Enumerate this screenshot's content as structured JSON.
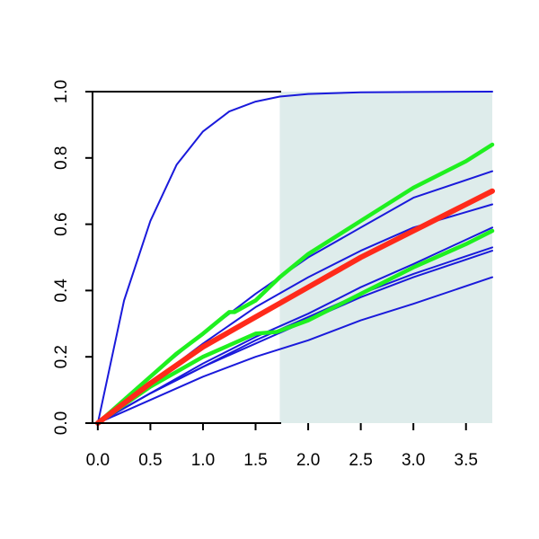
{
  "chart_data": {
    "type": "line",
    "title": "",
    "xlabel": "",
    "ylabel": "",
    "xlim": [
      -0.05,
      3.75
    ],
    "ylim": [
      0,
      1.0
    ],
    "x_ticks": [
      0.0,
      0.5,
      1.0,
      1.5,
      2.0,
      2.5,
      3.0,
      3.5
    ],
    "x_tick_labels": [
      "0.0",
      "0.5",
      "1.0",
      "1.5",
      "2.0",
      "2.5",
      "3.0",
      "3.5"
    ],
    "y_ticks": [
      0.0,
      0.2,
      0.4,
      0.6,
      0.8,
      1.0
    ],
    "y_tick_labels": [
      "0.0",
      "0.2",
      "0.4",
      "0.6",
      "0.8",
      "1.0"
    ],
    "grid": false,
    "legend": "none",
    "shaded_region": {
      "x_from": 1.73,
      "x_to": 3.75,
      "color": "#deeceb"
    },
    "colors": {
      "blue": "#1a1adb",
      "red": "#ff2a1a",
      "green": "#1ff01f"
    },
    "series": [
      {
        "color": "blue",
        "width": 2,
        "points": [
          [
            0,
            0
          ],
          [
            0.25,
            0.37
          ],
          [
            0.5,
            0.61
          ],
          [
            0.75,
            0.78
          ],
          [
            1.0,
            0.88
          ],
          [
            1.25,
            0.94
          ],
          [
            1.5,
            0.97
          ],
          [
            1.73,
            0.985
          ],
          [
            2.0,
            0.993
          ],
          [
            2.5,
            0.998
          ],
          [
            3.0,
            0.999
          ],
          [
            3.75,
            1.0
          ]
        ]
      },
      {
        "color": "blue",
        "width": 2,
        "points": [
          [
            0,
            0
          ],
          [
            0.5,
            0.14
          ],
          [
            1.0,
            0.27
          ],
          [
            1.5,
            0.39
          ],
          [
            2.0,
            0.5
          ],
          [
            2.5,
            0.59
          ],
          [
            3.0,
            0.68
          ],
          [
            3.75,
            0.76
          ]
        ]
      },
      {
        "color": "blue",
        "width": 2,
        "points": [
          [
            0,
            0
          ],
          [
            0.5,
            0.12
          ],
          [
            1.0,
            0.24
          ],
          [
            1.5,
            0.35
          ],
          [
            2.0,
            0.44
          ],
          [
            2.5,
            0.52
          ],
          [
            3.0,
            0.59
          ],
          [
            3.75,
            0.66
          ]
        ]
      },
      {
        "color": "blue",
        "width": 2,
        "points": [
          [
            0,
            0
          ],
          [
            0.5,
            0.09
          ],
          [
            1.0,
            0.18
          ],
          [
            1.5,
            0.26
          ],
          [
            2.0,
            0.33
          ],
          [
            2.5,
            0.41
          ],
          [
            3.0,
            0.48
          ],
          [
            3.75,
            0.59
          ]
        ]
      },
      {
        "color": "blue",
        "width": 2,
        "points": [
          [
            0,
            0
          ],
          [
            0.5,
            0.09
          ],
          [
            1.0,
            0.17
          ],
          [
            1.5,
            0.25
          ],
          [
            2.0,
            0.32
          ],
          [
            2.5,
            0.39
          ],
          [
            3.0,
            0.45
          ],
          [
            3.75,
            0.53
          ]
        ]
      },
      {
        "color": "blue",
        "width": 2,
        "points": [
          [
            0,
            0
          ],
          [
            0.5,
            0.09
          ],
          [
            1.0,
            0.17
          ],
          [
            1.5,
            0.24
          ],
          [
            2.0,
            0.31
          ],
          [
            2.5,
            0.38
          ],
          [
            3.0,
            0.44
          ],
          [
            3.75,
            0.52
          ]
        ]
      },
      {
        "color": "blue",
        "width": 2,
        "points": [
          [
            0,
            0
          ],
          [
            0.5,
            0.07
          ],
          [
            1.0,
            0.14
          ],
          [
            1.5,
            0.2
          ],
          [
            2.0,
            0.25
          ],
          [
            2.5,
            0.31
          ],
          [
            3.0,
            0.36
          ],
          [
            3.75,
            0.44
          ]
        ]
      },
      {
        "color": "green",
        "width": 4.5,
        "points": [
          [
            0,
            0
          ],
          [
            0.25,
            0.07
          ],
          [
            0.5,
            0.14
          ],
          [
            0.75,
            0.21
          ],
          [
            1.0,
            0.27
          ],
          [
            1.25,
            0.335
          ],
          [
            1.3,
            0.335
          ],
          [
            1.5,
            0.37
          ],
          [
            1.73,
            0.44
          ],
          [
            2.0,
            0.51
          ],
          [
            2.5,
            0.61
          ],
          [
            3.0,
            0.71
          ],
          [
            3.5,
            0.79
          ],
          [
            3.75,
            0.84
          ]
        ]
      },
      {
        "color": "green",
        "width": 4.5,
        "points": [
          [
            0,
            0
          ],
          [
            0.5,
            0.11
          ],
          [
            1.0,
            0.2
          ],
          [
            1.5,
            0.27
          ],
          [
            1.7,
            0.275
          ],
          [
            2.0,
            0.31
          ],
          [
            2.5,
            0.39
          ],
          [
            3.0,
            0.47
          ],
          [
            3.5,
            0.54
          ],
          [
            3.75,
            0.58
          ]
        ]
      },
      {
        "color": "red",
        "width": 6,
        "points": [
          [
            0,
            0
          ],
          [
            0.5,
            0.12
          ],
          [
            1.0,
            0.23
          ],
          [
            1.5,
            0.32
          ],
          [
            2.0,
            0.41
          ],
          [
            2.5,
            0.5
          ],
          [
            3.0,
            0.58
          ],
          [
            3.5,
            0.66
          ],
          [
            3.75,
            0.7
          ]
        ]
      }
    ]
  }
}
